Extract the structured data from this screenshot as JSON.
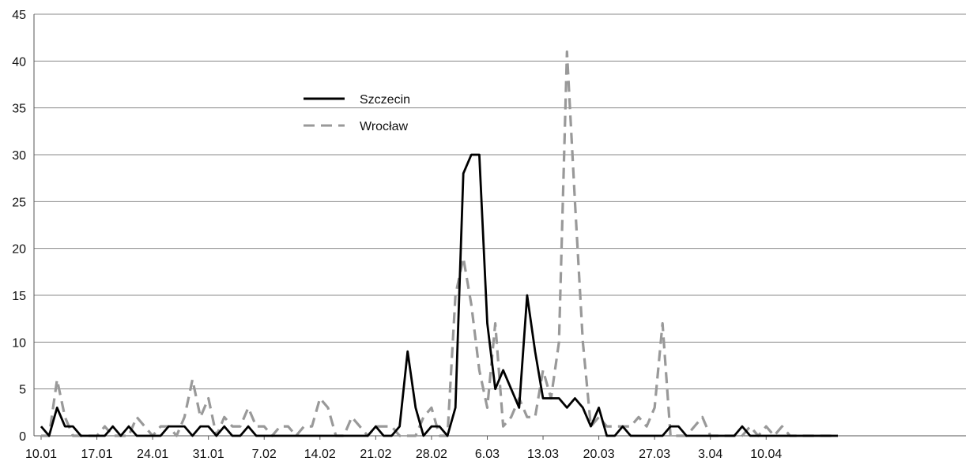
{
  "chart_data": {
    "type": "line",
    "title": "",
    "xlabel": "",
    "ylabel": "",
    "ylim": [
      0,
      45
    ],
    "yticks": [
      0,
      5,
      10,
      15,
      20,
      25,
      30,
      35,
      40,
      45
    ],
    "grid": "horizontal",
    "legend_position": "top-left",
    "x_tick_labels": [
      {
        "index": 0,
        "label": "10.01"
      },
      {
        "index": 7,
        "label": "17.01"
      },
      {
        "index": 14,
        "label": "24.01"
      },
      {
        "index": 21,
        "label": "31.01"
      },
      {
        "index": 28,
        "label": "7.02"
      },
      {
        "index": 35,
        "label": "14.02"
      },
      {
        "index": 42,
        "label": "21.02"
      },
      {
        "index": 49,
        "label": "28.02"
      },
      {
        "index": 56,
        "label": "6.03"
      },
      {
        "index": 63,
        "label": "13.03"
      },
      {
        "index": 70,
        "label": "20.03"
      },
      {
        "index": 77,
        "label": "27.03"
      },
      {
        "index": 84,
        "label": "3.04"
      },
      {
        "index": 91,
        "label": "10.04"
      }
    ],
    "series": [
      {
        "name": "Szczecin",
        "color": "#000000",
        "dash": "solid",
        "values": [
          1,
          0,
          3,
          1,
          1,
          0,
          0,
          0,
          0,
          1,
          0,
          1,
          0,
          0,
          0,
          0,
          1,
          1,
          1,
          0,
          1,
          1,
          0,
          1,
          0,
          0,
          1,
          0,
          0,
          0,
          0,
          0,
          0,
          0,
          0,
          0,
          0,
          0,
          0,
          0,
          0,
          0,
          1,
          0,
          0,
          1,
          9,
          3,
          0,
          1,
          1,
          0,
          3,
          28,
          30,
          30,
          12,
          5,
          7,
          5,
          3,
          15,
          9,
          4,
          4,
          4,
          3,
          4,
          3,
          1,
          3,
          0,
          0,
          1,
          0,
          0,
          0,
          0,
          0,
          1,
          1,
          0,
          0,
          0,
          0,
          0,
          0,
          0,
          1,
          0,
          0,
          0,
          0,
          0,
          0,
          0,
          0,
          0,
          0,
          0,
          0
        ]
      },
      {
        "name": "Wrocław",
        "color": "#999999",
        "dash": "dashed",
        "values": [
          0,
          0,
          6,
          2,
          0,
          0,
          0,
          0,
          1,
          0,
          0,
          0,
          2,
          1,
          0,
          1,
          1,
          0,
          2,
          6,
          2,
          4,
          0,
          2,
          1,
          1,
          3,
          1,
          1,
          0,
          1,
          1,
          0,
          1,
          1,
          4,
          3,
          0,
          0,
          2,
          1,
          0,
          1,
          1,
          1,
          0,
          0,
          0,
          2,
          3,
          0,
          0,
          15,
          19,
          14,
          7,
          3,
          12,
          1,
          2,
          4,
          2,
          2,
          7,
          4,
          10,
          41,
          25,
          10,
          1,
          2,
          1,
          1,
          1,
          1,
          2,
          1,
          3,
          12,
          0,
          0,
          0,
          1,
          2,
          0,
          0,
          0,
          0,
          0,
          1,
          0,
          1,
          0,
          1,
          0,
          0,
          0,
          0,
          0,
          0,
          0
        ]
      }
    ]
  }
}
